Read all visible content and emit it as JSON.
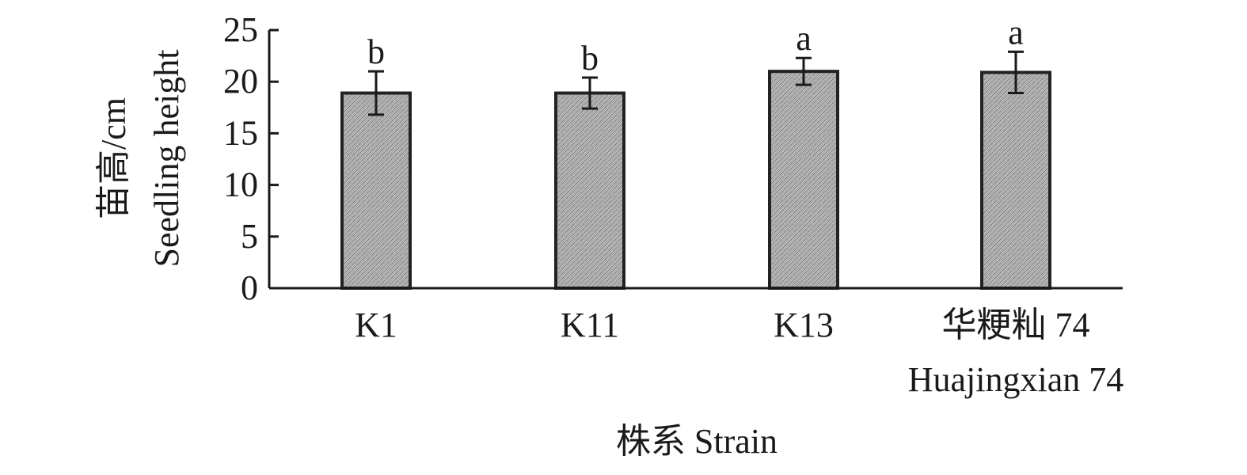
{
  "chart_data": {
    "type": "bar",
    "categories": [
      {
        "line1": "K1",
        "line2": ""
      },
      {
        "line1": "K11",
        "line2": ""
      },
      {
        "line1": "K13",
        "line2": ""
      },
      {
        "line1": "华粳籼 74",
        "line2": "Huajingxian 74"
      }
    ],
    "values": [
      18.9,
      18.9,
      21.0,
      20.9
    ],
    "errors": [
      2.1,
      1.5,
      1.3,
      2.0
    ],
    "significance": [
      "b",
      "b",
      "a",
      "a"
    ],
    "ylabel_line1": "苗高/cm",
    "ylabel_line2": "Seedling height",
    "xlabel": "株系 Strain",
    "ylim": [
      0,
      25
    ],
    "yticks": [
      0,
      5,
      10,
      15,
      20,
      25
    ],
    "grid": false,
    "bar_fill": "#bdbdbd",
    "bar_stroke": "#222222"
  }
}
